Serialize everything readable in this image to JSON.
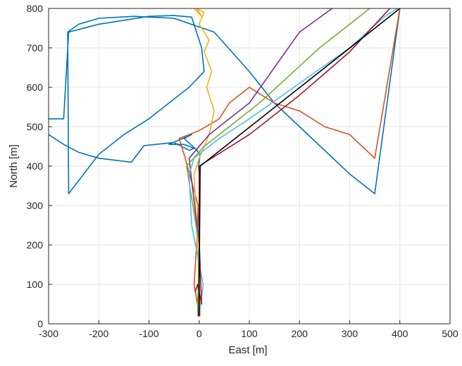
{
  "chart_data": {
    "type": "line",
    "title": "",
    "xlabel": "East [m]",
    "ylabel": "North [m]",
    "xlim": [
      -300,
      500
    ],
    "ylim": [
      0,
      800
    ],
    "xticks": [
      "-300",
      "-200",
      "-100",
      "0",
      "100",
      "200",
      "300",
      "400",
      "500"
    ],
    "yticks": [
      "0",
      "100",
      "200",
      "300",
      "400",
      "500",
      "600",
      "700",
      "800"
    ],
    "grid": true,
    "legend": "none",
    "series": [
      {
        "color": "#0072BD",
        "x": [
          0,
          -3,
          2,
          -1,
          0,
          0,
          -1,
          2,
          -8,
          -30,
          -15,
          -60,
          -30,
          -10,
          -20,
          -50,
          -110,
          -135,
          -200,
          -240,
          -270,
          -300,
          -310
        ],
        "y": [
          20,
          60,
          150,
          250,
          300,
          380,
          400,
          430,
          445,
          470,
          480,
          455,
          455,
          445,
          440,
          460,
          452,
          410,
          420,
          435,
          455,
          480,
          520
        ],
        "x2": [
          -310,
          -270,
          -260,
          -200,
          -100,
          -50,
          -15,
          5,
          10,
          -20,
          -60,
          -100,
          -150,
          -200,
          -230,
          -260,
          -262,
          -240,
          -200,
          -130,
          -50,
          30,
          100,
          150,
          200,
          250,
          300,
          350,
          400
        ],
        "y2": [
          520,
          520,
          740,
          760,
          780,
          782,
          778,
          700,
          640,
          600,
          560,
          520,
          480,
          430,
          380,
          330,
          740,
          760,
          775,
          780,
          775,
          740,
          640,
          560,
          500,
          440,
          380,
          330,
          800
        ]
      },
      {
        "color": "#D95319",
        "x": [
          0,
          -2,
          -10,
          -5,
          -2,
          -30,
          -40,
          0,
          40,
          60,
          80,
          100,
          150,
          200,
          250,
          300,
          350,
          400
        ],
        "y": [
          20,
          40,
          100,
          200,
          300,
          430,
          470,
          490,
          520,
          560,
          580,
          600,
          560,
          540,
          500,
          480,
          420,
          800
        ]
      },
      {
        "color": "#EDB120",
        "x": [
          2,
          0,
          -10,
          0,
          20,
          30,
          15,
          25,
          10,
          20,
          0,
          10,
          -5,
          5,
          -10
        ],
        "y": [
          20,
          100,
          380,
          420,
          480,
          540,
          600,
          640,
          690,
          720,
          760,
          790,
          800,
          780,
          800
        ]
      },
      {
        "color": "#7E2F8E",
        "x": [
          -2,
          0,
          -20,
          20,
          60,
          100,
          150,
          200,
          265
        ],
        "y": [
          20,
          200,
          420,
          480,
          520,
          560,
          650,
          740,
          800
        ]
      },
      {
        "color": "#77AC30",
        "x": [
          -3,
          0,
          -25,
          10,
          60,
          120,
          180,
          240,
          300,
          340
        ],
        "y": [
          30,
          200,
          400,
          450,
          500,
          560,
          630,
          700,
          760,
          800
        ]
      },
      {
        "color": "#4DBEEE",
        "x": [
          0,
          8,
          -15,
          -20,
          -10,
          40,
          100,
          200,
          300,
          370,
          420,
          430,
          470,
          490
        ],
        "y": [
          20,
          100,
          250,
          380,
          420,
          470,
          520,
          610,
          700,
          780,
          820,
          800,
          805,
          800
        ]
      },
      {
        "color": "#A2142F",
        "x": [
          -8,
          -3,
          5,
          0,
          0,
          100,
          200,
          300,
          380
        ],
        "y": [
          80,
          100,
          50,
          200,
          400,
          480,
          580,
          690,
          800
        ]
      },
      {
        "color": "#000000",
        "x": [
          0,
          0,
          2,
          400
        ],
        "y": [
          20,
          100,
          400,
          800
        ]
      }
    ]
  }
}
